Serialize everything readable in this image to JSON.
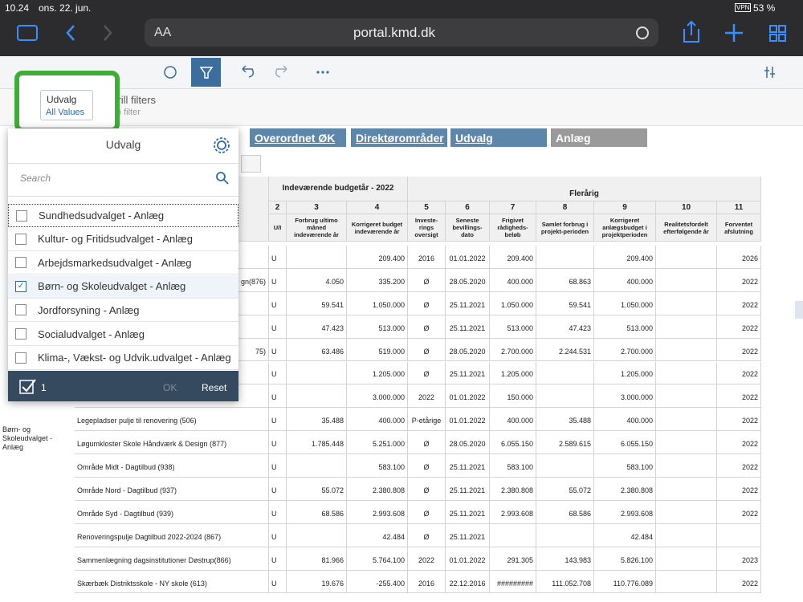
{
  "status_bar": {
    "time": "10.24",
    "date": "ons. 22. jun.",
    "vpn": "VPN",
    "battery": "53 %"
  },
  "browser": {
    "text_size": "AA",
    "url": "portal.kmd.dk"
  },
  "toolbar": {
    "drill_filters": "Drill filters",
    "no_filter": "No filter"
  },
  "filter_chip": {
    "label": "Udvalg",
    "value": "All Values"
  },
  "dimension_buttons": [
    "Overordnet ØK",
    "Direktørområder",
    "Udvalg",
    "Anlæg"
  ],
  "dropdown": {
    "title": "Udvalg",
    "search_placeholder": "Search",
    "items": [
      {
        "label": "Sundhedsudvalget - Anlæg",
        "checked": false
      },
      {
        "label": "Kultur- og Fritidsudvalget - Anlæg",
        "checked": false
      },
      {
        "label": "Arbejdsmarkedsudvalget - Anlæg",
        "checked": false
      },
      {
        "label": "Børn- og Skoleudvalget - Anlæg",
        "checked": true
      },
      {
        "label": "Jordforsyning - Anlæg",
        "checked": false
      },
      {
        "label": "Socialudvalget - Anlæg",
        "checked": false
      },
      {
        "label": "Klima-, Vækst- og Udvik.udvalget - Anlæg",
        "checked": false
      }
    ],
    "selected_count": 1,
    "ok": "OK",
    "reset": "Reset"
  },
  "table": {
    "group_headers": [
      "Indeværende budgetår - 2022",
      "Flerårig"
    ],
    "column_numbers": [
      2,
      3,
      4,
      5,
      6,
      7,
      8,
      9,
      10,
      11
    ],
    "column_headers": [
      "U/I",
      "Forbrug ultimo måned indeværende år",
      "Korrigeret budget indeværende år",
      "Investe-rings oversigt",
      "Seneste bevillings-dato",
      "Frigivet rådigheds-beløb",
      "Samlet forbrug i projekt-perioden",
      "Korrigeret anlægsbudget i projektperioden",
      "Realitetsfordelt efterfølgende år",
      "Forventet afslutning"
    ],
    "group_label": "Børn- og Skoleudvalget - Anlæg",
    "rows": [
      [
        null,
        "U",
        null,
        "209.400",
        "2016",
        "01.01.2022",
        "209.400",
        null,
        "209.400",
        null,
        "2026"
      ],
      [
        "gn(876)",
        "U",
        "4.050",
        "335.200",
        "Ø",
        "28.05.2020",
        "400.000",
        "68.863",
        "400.000",
        null,
        "2022"
      ],
      [
        null,
        "U",
        "59.541",
        "1.050.000",
        "Ø",
        "25.11.2021",
        "1.050.000",
        "59.541",
        "1.050.000",
        null,
        "2022"
      ],
      [
        null,
        "U",
        "47.423",
        "513.000",
        "Ø",
        "25.11.2021",
        "513.000",
        "47.423",
        "513.000",
        null,
        "2022"
      ],
      [
        "75)",
        "U",
        "63.486",
        "519.000",
        "Ø",
        "28.05.2020",
        "2.700.000",
        "2.244.531",
        "2.700.000",
        null,
        "2022"
      ],
      [
        null,
        "U",
        null,
        "1.205.000",
        "Ø",
        "25.11.2021",
        "1.205.000",
        null,
        "1.205.000",
        null,
        "2022"
      ],
      [
        null,
        "U",
        null,
        "3.000.000",
        "2022",
        "01.01.2022",
        "150.000",
        null,
        "3.000.000",
        null,
        "2022"
      ],
      [
        "Legepladser pulje til renovering (506)",
        "U",
        "35.488",
        "400.000",
        "P-etårige",
        "01.01.2022",
        "400.000",
        "35.488",
        "400.000",
        null,
        "2022"
      ],
      [
        "Løgumkloster Skole Håndværk & Design (877)",
        "U",
        "1.785.448",
        "5.251.000",
        "Ø",
        "28.05.2020",
        "6.055.150",
        "2.589.615",
        "6.055.150",
        null,
        "2022"
      ],
      [
        "Område Midt - Dagtilbud (938)",
        "U",
        null,
        "583.100",
        "Ø",
        "25.11.2021",
        "583.100",
        null,
        "583.100",
        null,
        "2022"
      ],
      [
        "Område Nord - Dagtilbud (937)",
        "U",
        "55.072",
        "2.380.808",
        "Ø",
        "25.11.2021",
        "2.380.808",
        "55.072",
        "2.380.808",
        null,
        "2022"
      ],
      [
        "Område Syd - Dagtilbud (939)",
        "U",
        "68.586",
        "2.993.608",
        "Ø",
        "25.11.2021",
        "2.993.608",
        "68.586",
        "2.993.608",
        null,
        "2022"
      ],
      [
        "Renoveringspulje Dagtilbud 2022-2024 (867)",
        "U",
        null,
        "42.484",
        "Ø",
        "25.11.2021",
        null,
        null,
        "42.484",
        null,
        null
      ],
      [
        "Sammenlægning dagsinstitutioner Døstrup(866)",
        "U",
        "81.966",
        "5.764.100",
        "2022",
        "01.01.2022",
        "291.305",
        "143.983",
        "5.826.100",
        null,
        "2023"
      ],
      [
        "Skærbæk Distriktsskole - NY skole (613)",
        "U",
        "19.676",
        "-255.400",
        "2016",
        "22.12.2016",
        "#########",
        "111.052.708",
        "110.776.089",
        null,
        "2022"
      ]
    ]
  }
}
